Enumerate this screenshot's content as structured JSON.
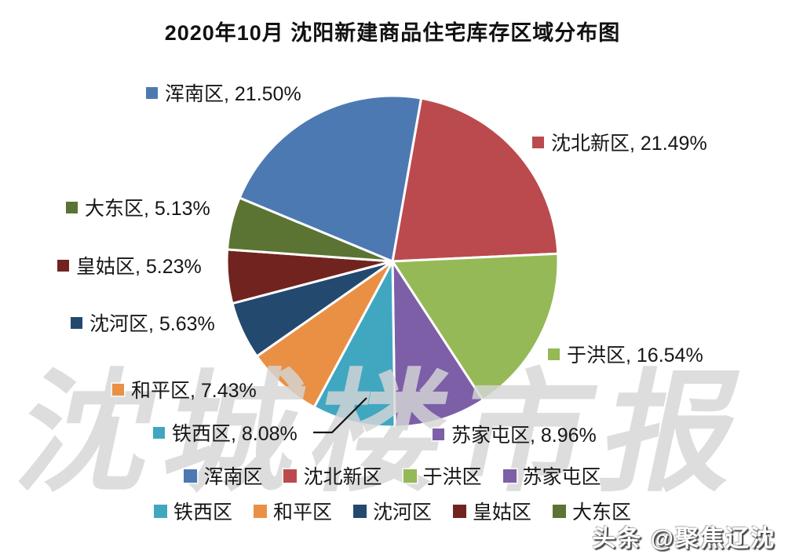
{
  "watermark": "沈城楼市报",
  "branding": "头条 @聚焦辽沈",
  "chart_data": {
    "type": "pie",
    "title": "2020年10月 沈阳新建商品住宅库存区域分布图",
    "unit": "percent",
    "legend_position": "bottom",
    "direction": "clockwise",
    "start_angle_deg": 10,
    "slices": [
      {
        "label": "浑南区",
        "value": 21.5,
        "pct_text": "21.50%",
        "color": "#4d79b3"
      },
      {
        "label": "沈北新区",
        "value": 21.49,
        "pct_text": "21.49%",
        "color": "#bb4a4e"
      },
      {
        "label": "于洪区",
        "value": 16.54,
        "pct_text": "16.54%",
        "color": "#95b957"
      },
      {
        "label": "苏家屯区",
        "value": 8.96,
        "pct_text": "8.96%",
        "color": "#7d5fa8"
      },
      {
        "label": "铁西区",
        "value": 8.08,
        "pct_text": "8.08%",
        "color": "#41a7c1"
      },
      {
        "label": "和平区",
        "value": 7.43,
        "pct_text": "7.43%",
        "color": "#ea9045"
      },
      {
        "label": "沈河区",
        "value": 5.63,
        "pct_text": "5.63%",
        "color": "#23496f"
      },
      {
        "label": "皇姑区",
        "value": 5.23,
        "pct_text": "5.23%",
        "color": "#71241f"
      },
      {
        "label": "大东区",
        "value": 5.13,
        "pct_text": "5.13%",
        "color": "#5b7433"
      }
    ],
    "draw_order": [
      "沈北新区",
      "于洪区",
      "苏家屯区",
      "铁西区",
      "和平区",
      "沈河区",
      "皇姑区",
      "大东区",
      "浑南区"
    ],
    "legend_rows": [
      [
        "浑南区",
        "沈北新区",
        "于洪区",
        "苏家屯区"
      ],
      [
        "铁西区",
        "和平区",
        "沈河区",
        "皇姑区",
        "大东区"
      ]
    ],
    "label_separator": ", "
  }
}
